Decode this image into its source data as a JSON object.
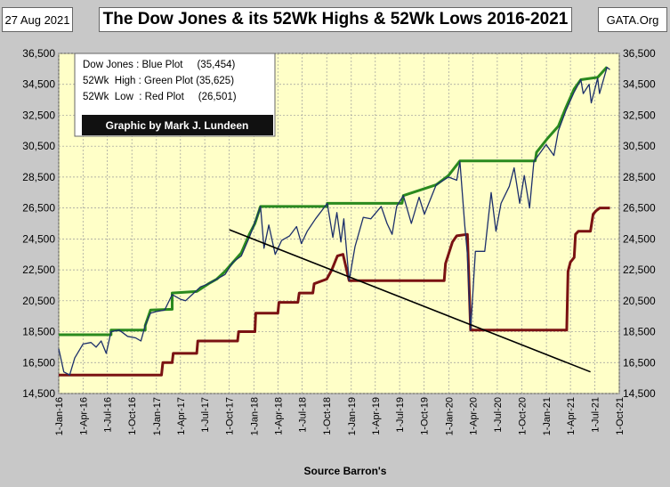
{
  "header": {
    "date": "27 Aug 2021",
    "title": "The Dow Jones & its 52Wk Highs & 52Wk Lows 2016-2021",
    "site": "GATA.Org"
  },
  "legend": {
    "lines": [
      "Dow Jones : Blue Plot     (35,454)",
      "52Wk  High : Green Plot (35,625)",
      "52Wk  Low  : Red Plot     (26,501)"
    ],
    "credit": "Graphic by Mark J. Lundeen"
  },
  "source": "Source Barron's",
  "colors": {
    "plot_bg": "#ffffc8",
    "dow": "#1c2f6b",
    "high": "#2a8a1e",
    "low": "#7a1212",
    "trend": "#000000",
    "frame_bg": "#c8c8c8"
  },
  "chart_data": {
    "type": "line",
    "title": "The Dow Jones & its 52Wk Highs & 52Wk Lows 2016-2021",
    "xlabel": "Source Barron's",
    "ylabel": "",
    "ylim": [
      14500,
      36500
    ],
    "yticks": [
      14500,
      16500,
      18500,
      20500,
      22500,
      24500,
      26500,
      28500,
      30500,
      32500,
      34500,
      36500
    ],
    "ytick_labels": [
      "14,500",
      "16,500",
      "18,500",
      "20,500",
      "22,500",
      "24,500",
      "26,500",
      "28,500",
      "30,500",
      "32,500",
      "34,500",
      "36,500"
    ],
    "xticks": [
      "2016-01-01",
      "2016-04-01",
      "2016-07-01",
      "2016-10-01",
      "2017-01-01",
      "2017-04-01",
      "2017-07-01",
      "2017-10-01",
      "2018-01-01",
      "2018-04-01",
      "2018-07-01",
      "2018-10-01",
      "2019-01-01",
      "2019-04-01",
      "2019-07-01",
      "2019-10-01",
      "2020-01-01",
      "2020-04-01",
      "2020-07-01",
      "2020-10-01",
      "2021-01-01",
      "2021-04-01",
      "2021-07-01",
      "2021-10-01"
    ],
    "xtick_labels": [
      "1-Jan-16",
      "1-Apr-16",
      "1-Jul-16",
      "1-Oct-16",
      "1-Jan-17",
      "1-Apr-17",
      "1-Jul-17",
      "1-Oct-17",
      "1-Jan-18",
      "1-Apr-18",
      "1-Jul-18",
      "1-Oct-18",
      "1-Jan-19",
      "1-Apr-19",
      "1-Jul-19",
      "1-Oct-19",
      "1-Jan-20",
      "1-Apr-20",
      "1-Jul-20",
      "1-Oct-20",
      "1-Jan-21",
      "1-Apr-21",
      "1-Jul-21",
      "1-Oct-21"
    ],
    "grid": true,
    "series": [
      {
        "name": "Dow Jones",
        "color": "#1c2f6b",
        "points": [
          [
            "2016-01-01",
            17400
          ],
          [
            "2016-01-20",
            15900
          ],
          [
            "2016-02-11",
            15700
          ],
          [
            "2016-03-01",
            16800
          ],
          [
            "2016-04-01",
            17700
          ],
          [
            "2016-05-01",
            17800
          ],
          [
            "2016-05-20",
            17500
          ],
          [
            "2016-06-08",
            17900
          ],
          [
            "2016-06-27",
            17100
          ],
          [
            "2016-07-15",
            18500
          ],
          [
            "2016-08-15",
            18600
          ],
          [
            "2016-09-15",
            18200
          ],
          [
            "2016-10-15",
            18100
          ],
          [
            "2016-11-04",
            17900
          ],
          [
            "2016-11-20",
            18900
          ],
          [
            "2016-12-10",
            19700
          ],
          [
            "2016-12-31",
            19800
          ],
          [
            "2017-02-01",
            19900
          ],
          [
            "2017-03-01",
            20900
          ],
          [
            "2017-04-01",
            20600
          ],
          [
            "2017-04-20",
            20500
          ],
          [
            "2017-05-15",
            20900
          ],
          [
            "2017-06-15",
            21400
          ],
          [
            "2017-07-15",
            21600
          ],
          [
            "2017-08-15",
            21900
          ],
          [
            "2017-09-15",
            22200
          ],
          [
            "2017-10-15",
            23000
          ],
          [
            "2017-11-15",
            23400
          ],
          [
            "2017-12-15",
            24600
          ],
          [
            "2018-01-10",
            25800
          ],
          [
            "2018-01-26",
            26600
          ],
          [
            "2018-02-08",
            23900
          ],
          [
            "2018-02-26",
            25400
          ],
          [
            "2018-03-22",
            23500
          ],
          [
            "2018-04-15",
            24400
          ],
          [
            "2018-05-15",
            24700
          ],
          [
            "2018-06-10",
            25300
          ],
          [
            "2018-06-28",
            24200
          ],
          [
            "2018-07-20",
            25000
          ],
          [
            "2018-08-20",
            25800
          ],
          [
            "2018-09-20",
            26500
          ],
          [
            "2018-10-03",
            26800
          ],
          [
            "2018-10-24",
            24600
          ],
          [
            "2018-11-08",
            26200
          ],
          [
            "2018-11-23",
            24300
          ],
          [
            "2018-12-04",
            25800
          ],
          [
            "2018-12-24",
            21800
          ],
          [
            "2019-01-15",
            24000
          ],
          [
            "2019-02-15",
            25900
          ],
          [
            "2019-03-15",
            25800
          ],
          [
            "2019-04-23",
            26600
          ],
          [
            "2019-05-15",
            25500
          ],
          [
            "2019-06-03",
            24800
          ],
          [
            "2019-06-20",
            26600
          ],
          [
            "2019-07-15",
            27300
          ],
          [
            "2019-08-14",
            25500
          ],
          [
            "2019-09-12",
            27200
          ],
          [
            "2019-10-02",
            26100
          ],
          [
            "2019-11-15",
            28000
          ],
          [
            "2019-12-31",
            28500
          ],
          [
            "2020-01-31",
            28300
          ],
          [
            "2020-02-12",
            29500
          ],
          [
            "2020-03-01",
            25400
          ],
          [
            "2020-03-11",
            23500
          ],
          [
            "2020-03-23",
            18600
          ],
          [
            "2020-04-10",
            23700
          ],
          [
            "2020-05-15",
            23700
          ],
          [
            "2020-06-08",
            27500
          ],
          [
            "2020-06-26",
            25000
          ],
          [
            "2020-07-15",
            26800
          ],
          [
            "2020-08-15",
            27900
          ],
          [
            "2020-09-02",
            29100
          ],
          [
            "2020-09-23",
            26800
          ],
          [
            "2020-10-10",
            28600
          ],
          [
            "2020-10-30",
            26500
          ],
          [
            "2020-11-15",
            29500
          ],
          [
            "2020-12-31",
            30600
          ],
          [
            "2021-01-29",
            29900
          ],
          [
            "2021-02-15",
            31500
          ],
          [
            "2021-03-15",
            32800
          ],
          [
            "2021-04-15",
            34000
          ],
          [
            "2021-05-10",
            34800
          ],
          [
            "2021-05-19",
            33900
          ],
          [
            "2021-06-10",
            34500
          ],
          [
            "2021-06-18",
            33300
          ],
          [
            "2021-07-12",
            34900
          ],
          [
            "2021-07-19",
            33900
          ],
          [
            "2021-08-16",
            35600
          ],
          [
            "2021-08-27",
            35454
          ]
        ]
      },
      {
        "name": "52Wk High",
        "color": "#2a8a1e",
        "points": [
          [
            "2016-01-01",
            18300
          ],
          [
            "2016-07-15",
            18300
          ],
          [
            "2016-07-15",
            18600
          ],
          [
            "2016-11-20",
            18600
          ],
          [
            "2016-11-20",
            18900
          ],
          [
            "2016-12-10",
            19900
          ],
          [
            "2017-03-01",
            19950
          ],
          [
            "2017-03-01",
            21000
          ],
          [
            "2017-06-01",
            21100
          ],
          [
            "2017-07-15",
            21600
          ],
          [
            "2017-08-15",
            21900
          ],
          [
            "2017-09-15",
            22400
          ],
          [
            "2017-11-15",
            23600
          ],
          [
            "2017-12-15",
            24800
          ],
          [
            "2018-01-05",
            25500
          ],
          [
            "2018-01-26",
            26600
          ],
          [
            "2018-10-03",
            26600
          ],
          [
            "2018-10-03",
            26800
          ],
          [
            "2019-07-10",
            26800
          ],
          [
            "2019-07-15",
            27300
          ],
          [
            "2019-11-15",
            28000
          ],
          [
            "2019-12-31",
            28600
          ],
          [
            "2020-02-12",
            29550
          ],
          [
            "2020-11-20",
            29550
          ],
          [
            "2020-11-25",
            30100
          ],
          [
            "2021-01-05",
            31000
          ],
          [
            "2021-02-15",
            31800
          ],
          [
            "2021-03-15",
            33000
          ],
          [
            "2021-04-15",
            34200
          ],
          [
            "2021-05-10",
            34800
          ],
          [
            "2021-07-12",
            34950
          ],
          [
            "2021-08-16",
            35625
          ]
        ]
      },
      {
        "name": "52Wk Low",
        "color": "#7a1212",
        "points": [
          [
            "2016-01-01",
            15700
          ],
          [
            "2017-01-20",
            15700
          ],
          [
            "2017-01-25",
            16500
          ],
          [
            "2017-03-01",
            16500
          ],
          [
            "2017-03-05",
            17100
          ],
          [
            "2017-06-01",
            17100
          ],
          [
            "2017-06-05",
            17900
          ],
          [
            "2017-11-01",
            17900
          ],
          [
            "2017-11-05",
            18500
          ],
          [
            "2018-01-05",
            18500
          ],
          [
            "2018-01-08",
            19700
          ],
          [
            "2018-04-01",
            19700
          ],
          [
            "2018-04-05",
            20400
          ],
          [
            "2018-06-15",
            20400
          ],
          [
            "2018-06-20",
            21000
          ],
          [
            "2018-08-10",
            21000
          ],
          [
            "2018-08-15",
            21600
          ],
          [
            "2018-10-01",
            21900
          ],
          [
            "2018-10-20",
            22500
          ],
          [
            "2018-11-10",
            23400
          ],
          [
            "2018-12-01",
            23500
          ],
          [
            "2018-12-24",
            21800
          ],
          [
            "2019-12-15",
            21800
          ],
          [
            "2019-12-20",
            22900
          ],
          [
            "2020-01-15",
            24300
          ],
          [
            "2020-01-31",
            24700
          ],
          [
            "2020-03-11",
            24800
          ],
          [
            "2020-03-23",
            18600
          ],
          [
            "2021-03-18",
            18600
          ],
          [
            "2021-03-23",
            22400
          ],
          [
            "2021-04-01",
            23000
          ],
          [
            "2021-04-15",
            23300
          ],
          [
            "2021-04-20",
            24800
          ],
          [
            "2021-05-01",
            25000
          ],
          [
            "2021-06-15",
            25000
          ],
          [
            "2021-06-25",
            26100
          ],
          [
            "2021-07-05",
            26300
          ],
          [
            "2021-07-20",
            26500
          ],
          [
            "2021-08-27",
            26501
          ]
        ]
      }
    ],
    "trendline": [
      [
        "2017-10-01",
        25100
      ],
      [
        "2021-06-15",
        15900
      ]
    ],
    "annotations": [
      "Dow Jones : Blue Plot (35,454)",
      "52Wk High : Green Plot (35,625)",
      "52Wk Low : Red Plot (26,501)",
      "Graphic by Mark J. Lundeen"
    ]
  }
}
